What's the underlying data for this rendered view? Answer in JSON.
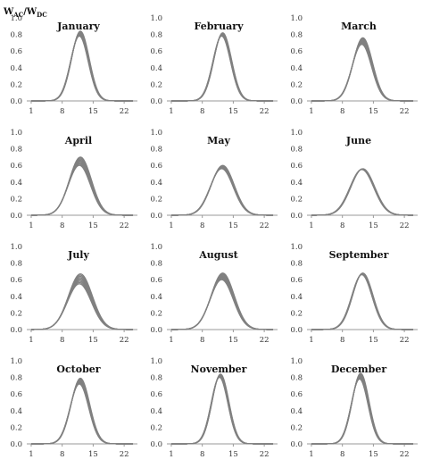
{
  "figure": {
    "ylabel": {
      "w": "W",
      "ac": "AC",
      "slash": "/",
      "w2": "W",
      "dc": "DC"
    }
  },
  "chart_data": [
    {
      "type": "line",
      "title": "January",
      "x": [
        1,
        2,
        3,
        4,
        5,
        6,
        7,
        8,
        9,
        10,
        11,
        12,
        13,
        14,
        15,
        16,
        17,
        18,
        19,
        20,
        21,
        22,
        23,
        24
      ],
      "x_ticks": [
        "1",
        "8",
        "15",
        "22"
      ],
      "y_ticks": [
        "0.0",
        "0.2",
        "0.4",
        "0.6",
        "0.8",
        "1.0"
      ],
      "ylim": [
        0,
        1.0
      ],
      "peak_hour": 12,
      "peak_min": 0.78,
      "peak_max": 0.84,
      "width_hours": 2.0,
      "band_color": "#808080"
    },
    {
      "type": "line",
      "title": "February",
      "x": [
        1,
        2,
        3,
        4,
        5,
        6,
        7,
        8,
        9,
        10,
        11,
        12,
        13,
        14,
        15,
        16,
        17,
        18,
        19,
        20,
        21,
        22,
        23,
        24
      ],
      "x_ticks": [
        "1",
        "8",
        "15",
        "22"
      ],
      "y_ticks": [
        "0.0",
        "0.2",
        "0.4",
        "0.6",
        "0.8",
        "1.0"
      ],
      "ylim": [
        0,
        1.0
      ],
      "peak_hour": 12.5,
      "peak_min": 0.78,
      "peak_max": 0.82,
      "width_hours": 2.0,
      "band_color": "#808080"
    },
    {
      "type": "line",
      "title": "March",
      "x": [
        1,
        2,
        3,
        4,
        5,
        6,
        7,
        8,
        9,
        10,
        11,
        12,
        13,
        14,
        15,
        16,
        17,
        18,
        19,
        20,
        21,
        22,
        23,
        24
      ],
      "x_ticks": [
        "1",
        "8",
        "15",
        "22"
      ],
      "y_ticks": [
        "0.0",
        "0.2",
        "0.4",
        "0.6",
        "0.8",
        "1.0"
      ],
      "ylim": [
        0,
        1.0
      ],
      "peak_hour": 12.5,
      "peak_min": 0.68,
      "peak_max": 0.76,
      "width_hours": 2.2,
      "band_color": "#808080"
    },
    {
      "type": "line",
      "title": "April",
      "x": [
        1,
        2,
        3,
        4,
        5,
        6,
        7,
        8,
        9,
        10,
        11,
        12,
        13,
        14,
        15,
        16,
        17,
        18,
        19,
        20,
        21,
        22,
        23,
        24
      ],
      "x_ticks": [
        "1",
        "8",
        "15",
        "22"
      ],
      "y_ticks": [
        "0.0",
        "0.2",
        "0.4",
        "0.6",
        "0.8",
        "1.0"
      ],
      "ylim": [
        0,
        1.0
      ],
      "peak_hour": 12,
      "peak_min": 0.6,
      "peak_max": 0.7,
      "width_hours": 2.5,
      "band_color": "#808080"
    },
    {
      "type": "line",
      "title": "May",
      "x": [
        1,
        2,
        3,
        4,
        5,
        6,
        7,
        8,
        9,
        10,
        11,
        12,
        13,
        14,
        15,
        16,
        17,
        18,
        19,
        20,
        21,
        22,
        23,
        24
      ],
      "x_ticks": [
        "1",
        "8",
        "15",
        "22"
      ],
      "y_ticks": [
        "0.0",
        "0.2",
        "0.4",
        "0.6",
        "0.8",
        "1.0"
      ],
      "ylim": [
        0,
        1.0
      ],
      "peak_hour": 12.5,
      "peak_min": 0.56,
      "peak_max": 0.6,
      "width_hours": 2.6,
      "band_color": "#808080"
    },
    {
      "type": "line",
      "title": "June",
      "x": [
        1,
        2,
        3,
        4,
        5,
        6,
        7,
        8,
        9,
        10,
        11,
        12,
        13,
        14,
        15,
        16,
        17,
        18,
        19,
        20,
        21,
        22,
        23,
        24
      ],
      "x_ticks": [
        "1",
        "8",
        "15",
        "22"
      ],
      "y_ticks": [
        "0.0",
        "0.2",
        "0.4",
        "0.6",
        "0.8",
        "1.0"
      ],
      "ylim": [
        0,
        1.0
      ],
      "peak_hour": 12.5,
      "peak_min": 0.55,
      "peak_max": 0.56,
      "width_hours": 2.7,
      "band_color": "#808080"
    },
    {
      "type": "line",
      "title": "July",
      "x": [
        1,
        2,
        3,
        4,
        5,
        6,
        7,
        8,
        9,
        10,
        11,
        12,
        13,
        14,
        15,
        16,
        17,
        18,
        19,
        20,
        21,
        22,
        23,
        24
      ],
      "x_ticks": [
        "1",
        "8",
        "15",
        "22"
      ],
      "y_ticks": [
        "0.0",
        "0.2",
        "0.4",
        "0.6",
        "0.8",
        "1.0"
      ],
      "ylim": [
        0,
        1.0
      ],
      "peak_hour": 12,
      "peak_min": 0.55,
      "peak_max": 0.67,
      "width_hours": 2.7,
      "band_color": "#808080"
    },
    {
      "type": "line",
      "title": "August",
      "x": [
        1,
        2,
        3,
        4,
        5,
        6,
        7,
        8,
        9,
        10,
        11,
        12,
        13,
        14,
        15,
        16,
        17,
        18,
        19,
        20,
        21,
        22,
        23,
        24
      ],
      "x_ticks": [
        "1",
        "8",
        "15",
        "22"
      ],
      "y_ticks": [
        "0.0",
        "0.2",
        "0.4",
        "0.6",
        "0.8",
        "1.0"
      ],
      "ylim": [
        0,
        1.0
      ],
      "peak_hour": 12.5,
      "peak_min": 0.6,
      "peak_max": 0.68,
      "width_hours": 2.6,
      "band_color": "#808080"
    },
    {
      "type": "line",
      "title": "September",
      "x": [
        1,
        2,
        3,
        4,
        5,
        6,
        7,
        8,
        9,
        10,
        11,
        12,
        13,
        14,
        15,
        16,
        17,
        18,
        19,
        20,
        21,
        22,
        23,
        24
      ],
      "x_ticks": [
        "1",
        "8",
        "15",
        "22"
      ],
      "y_ticks": [
        "0.0",
        "0.2",
        "0.4",
        "0.6",
        "0.8",
        "1.0"
      ],
      "ylim": [
        0,
        1.0
      ],
      "peak_hour": 12.5,
      "peak_min": 0.66,
      "peak_max": 0.68,
      "width_hours": 2.3,
      "band_color": "#808080"
    },
    {
      "type": "line",
      "title": "October",
      "x": [
        1,
        2,
        3,
        4,
        5,
        6,
        7,
        8,
        9,
        10,
        11,
        12,
        13,
        14,
        15,
        16,
        17,
        18,
        19,
        20,
        21,
        22,
        23,
        24
      ],
      "x_ticks": [
        "1",
        "8",
        "15",
        "22"
      ],
      "y_ticks": [
        "0.0",
        "0.2",
        "0.4",
        "0.6",
        "0.8",
        "1.0"
      ],
      "ylim": [
        0,
        1.0
      ],
      "peak_hour": 12,
      "peak_min": 0.72,
      "peak_max": 0.79,
      "width_hours": 2.1,
      "band_color": "#808080"
    },
    {
      "type": "line",
      "title": "November",
      "x": [
        1,
        2,
        3,
        4,
        5,
        6,
        7,
        8,
        9,
        10,
        11,
        12,
        13,
        14,
        15,
        16,
        17,
        18,
        19,
        20,
        21,
        22,
        23,
        24
      ],
      "x_ticks": [
        "1",
        "8",
        "15",
        "22"
      ],
      "y_ticks": [
        "0.0",
        "0.2",
        "0.4",
        "0.6",
        "0.8",
        "1.0"
      ],
      "ylim": [
        0,
        1.0
      ],
      "peak_hour": 12,
      "peak_min": 0.8,
      "peak_max": 0.84,
      "width_hours": 1.9,
      "band_color": "#808080"
    },
    {
      "type": "line",
      "title": "December",
      "x": [
        1,
        2,
        3,
        4,
        5,
        6,
        7,
        8,
        9,
        10,
        11,
        12,
        13,
        14,
        15,
        16,
        17,
        18,
        19,
        20,
        21,
        22,
        23,
        24
      ],
      "x_ticks": [
        "1",
        "8",
        "15",
        "22"
      ],
      "y_ticks": [
        "0.0",
        "0.2",
        "0.4",
        "0.6",
        "0.8",
        "1.0"
      ],
      "ylim": [
        0,
        1.0
      ],
      "peak_hour": 12,
      "peak_min": 0.78,
      "peak_max": 0.85,
      "width_hours": 1.9,
      "band_color": "#808080"
    }
  ]
}
